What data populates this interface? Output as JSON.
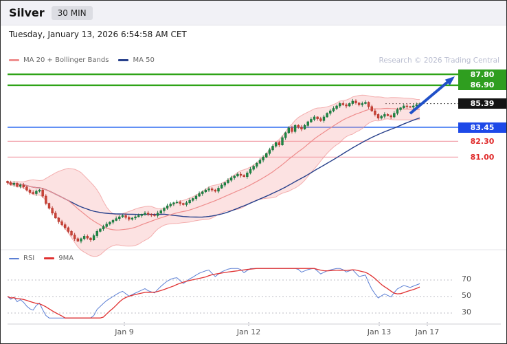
{
  "window": {
    "title": "Silver",
    "timeframe_badge": "30 MIN"
  },
  "date_line": "Tuesday, January 13, 2026 6:54:58 AM CET",
  "legend": {
    "ma20": "MA 20 + Bollinger Bands",
    "ma50": "MA 50"
  },
  "watermark": "Research © 2026 Trading Central",
  "rsi_legend": {
    "rsi": "RSI",
    "ma9": "9MA"
  },
  "chart_data": {
    "type": "candlestick",
    "title": "Silver",
    "interval": "30 MIN",
    "indicators": [
      "MA 20",
      "Bollinger Bands",
      "MA 50",
      "RSI",
      "9MA of RSI"
    ],
    "last_price": 85.39,
    "levels": [
      {
        "label": "87.80",
        "value": 87.8,
        "role": "resistance",
        "style": "solid",
        "width": 2.4,
        "line_color": "#2fa317",
        "box": "#2f9e1f",
        "text": "#ffffff"
      },
      {
        "label": "86.90",
        "value": 86.9,
        "role": "resistance",
        "style": "solid",
        "width": 2.4,
        "line_color": "#2fa317",
        "box": "#2f9e1f",
        "text": "#ffffff"
      },
      {
        "label": "85.39",
        "value": 85.39,
        "role": "last-price",
        "style": "dotted",
        "width": 1,
        "line_color": "#444444",
        "box": "#141414",
        "text": "#ffffff"
      },
      {
        "label": "83.45",
        "value": 83.45,
        "role": "pivot",
        "style": "solid",
        "width": 1.6,
        "line_color": "#2e6bf0",
        "box": "#1d49e8",
        "text": "#ffffff"
      },
      {
        "label": "82.30",
        "value": 82.3,
        "role": "support",
        "style": "solid",
        "width": 1.2,
        "line_color": "#f2a3ad",
        "box": "transparent",
        "text": "#e02b2b"
      },
      {
        "label": "81.00",
        "value": 81.0,
        "role": "support",
        "style": "solid",
        "width": 1.2,
        "line_color": "#f2a3ad",
        "box": "transparent",
        "text": "#e02b2b"
      }
    ],
    "forecast_arrow": {
      "direction": "up",
      "target_level": 87.8,
      "color": "#2050c8"
    },
    "rsi_scale": [
      70,
      50,
      30
    ],
    "x_labels": [
      "Jan 9",
      "Jan 12",
      "Jan 13",
      "Jan 17"
    ],
    "closes": [
      78.9,
      78.75,
      78.85,
      78.6,
      78.7,
      78.55,
      78.3,
      78.1,
      78.0,
      78.2,
      78.3,
      77.8,
      77.2,
      76.8,
      76.4,
      76.0,
      75.7,
      75.45,
      75.2,
      74.9,
      74.6,
      74.3,
      74.1,
      74.3,
      74.5,
      74.35,
      74.2,
      74.55,
      74.9,
      75.1,
      75.3,
      75.5,
      75.65,
      75.8,
      75.95,
      76.1,
      76.2,
      76.05,
      75.9,
      76.0,
      76.1,
      76.2,
      76.3,
      76.4,
      76.3,
      76.25,
      76.2,
      76.4,
      76.6,
      76.8,
      77.0,
      77.15,
      77.25,
      77.3,
      77.2,
      77.1,
      77.25,
      77.45,
      77.6,
      77.8,
      78.0,
      78.15,
      78.3,
      78.4,
      78.3,
      78.2,
      78.45,
      78.7,
      78.9,
      79.1,
      79.3,
      79.45,
      79.6,
      79.5,
      79.4,
      79.7,
      80.0,
      80.25,
      80.5,
      80.75,
      81.0,
      81.3,
      81.6,
      81.9,
      82.2,
      82.0,
      82.6,
      83.0,
      83.4,
      83.1,
      83.6,
      83.45,
      83.3,
      83.6,
      83.9,
      84.1,
      84.3,
      84.15,
      84.0,
      84.3,
      84.6,
      84.8,
      85.0,
      85.2,
      85.4,
      85.3,
      85.2,
      85.4,
      85.6,
      85.45,
      85.3,
      85.4,
      85.5,
      85.15,
      84.8,
      84.5,
      84.2,
      84.35,
      84.5,
      84.4,
      84.3,
      84.6,
      84.9,
      85.05,
      85.2,
      85.15,
      85.1,
      85.2,
      85.3,
      85.39
    ]
  }
}
